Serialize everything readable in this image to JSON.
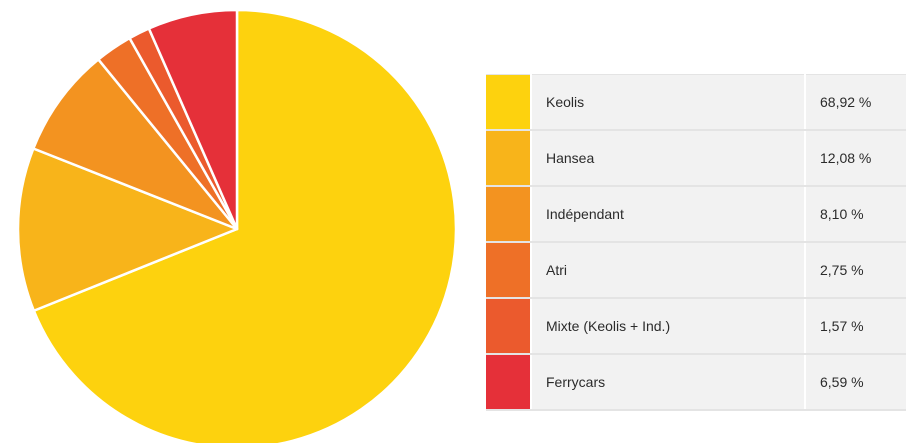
{
  "chart_data": {
    "type": "pie",
    "categories": [
      "Keolis",
      "Hansea",
      "Indépendant",
      "Atri",
      "Mixte (Keolis + Ind.)",
      "Ferrycars"
    ],
    "values": [
      68.92,
      12.08,
      8.1,
      2.75,
      1.57,
      6.59
    ],
    "value_labels": [
      "68,92 %",
      "12,08 %",
      "8,10 %",
      "2,75 %",
      "1,57 %",
      "6,59 %"
    ],
    "colors": [
      "#FDD20E",
      "#F8B41A",
      "#F39320",
      "#EE7027",
      "#EB5A2D",
      "#E53039"
    ],
    "start": "12 o'clock",
    "direction": "clockwise",
    "legend": "right",
    "title": ""
  }
}
